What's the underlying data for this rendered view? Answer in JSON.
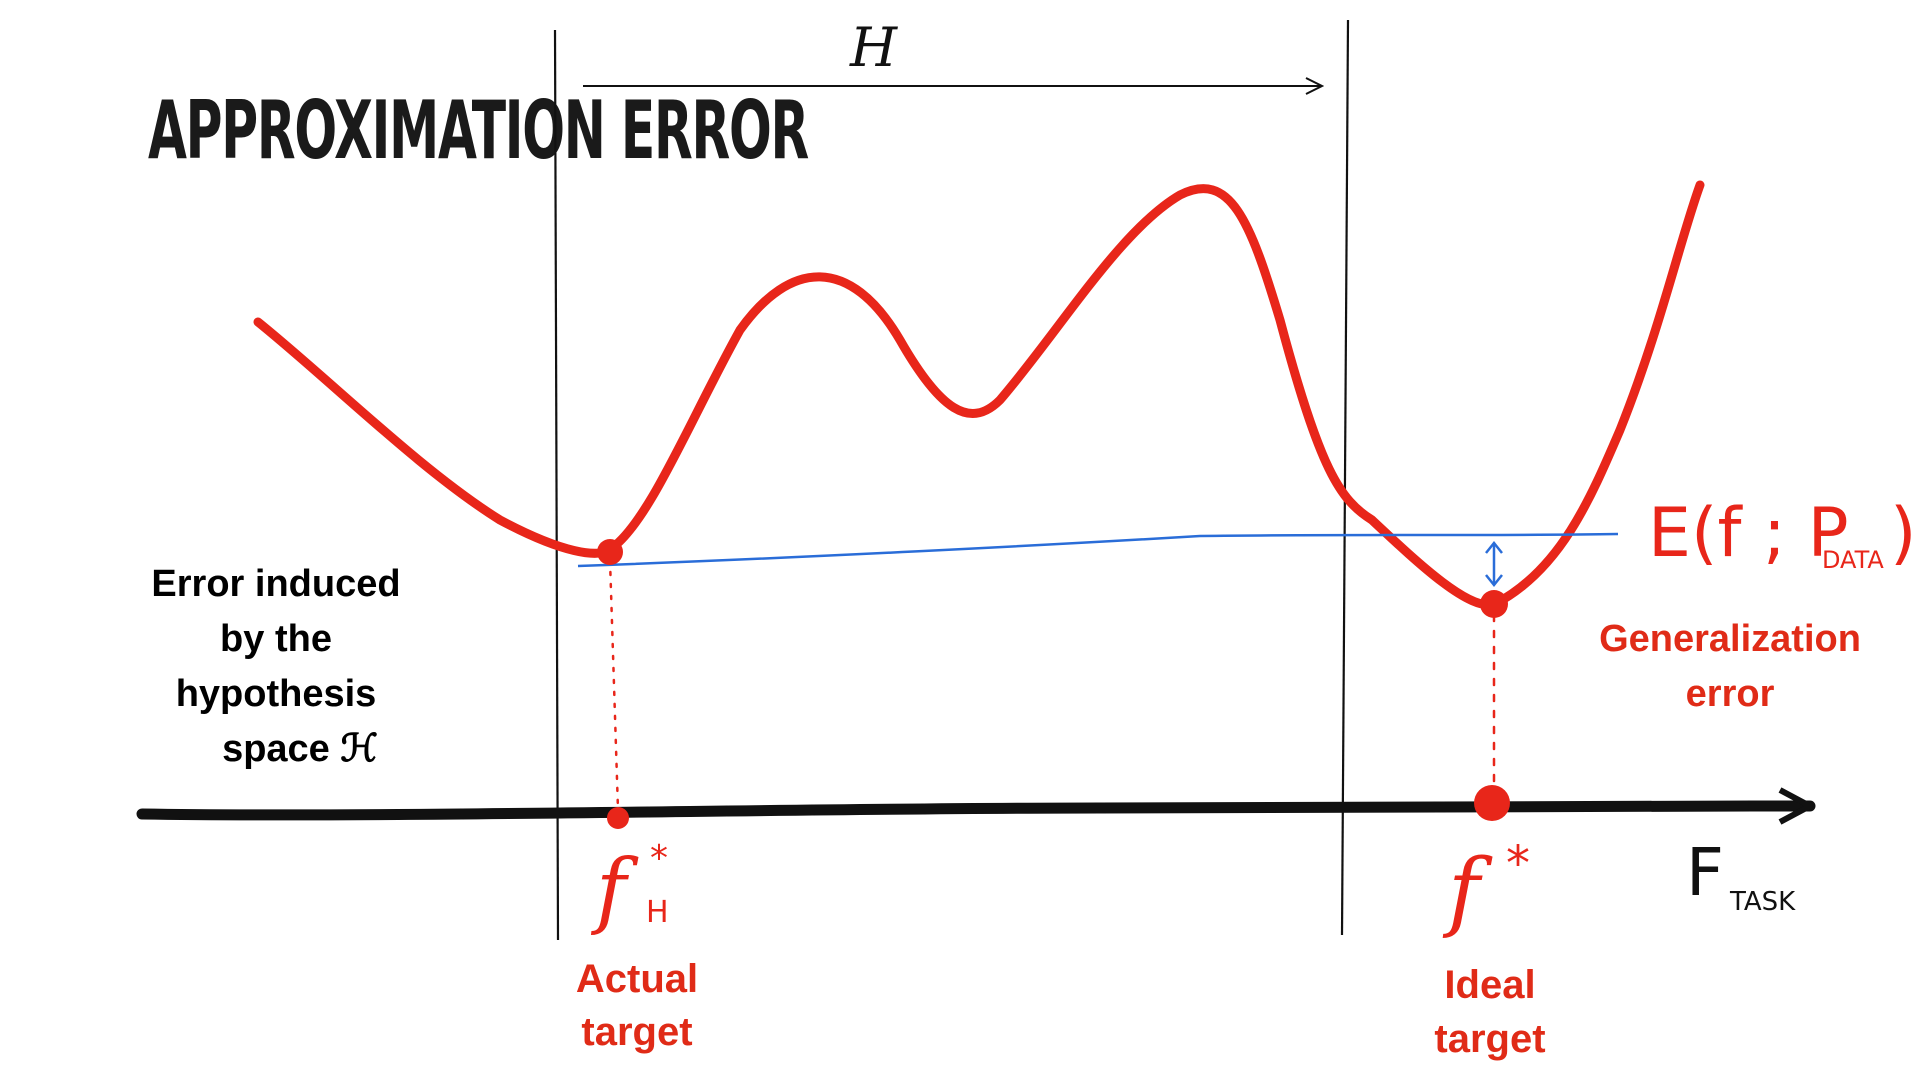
{
  "title": "APPROXIMATION ERROR",
  "hypothesis_space_symbol": "H",
  "curve_label": {
    "main": "E(f ; P",
    "sub": "DATA",
    "close": ")"
  },
  "axis_label": {
    "main": "F",
    "sub": "TASK"
  },
  "points": {
    "fh": {
      "main": "f",
      "sup": "*",
      "sub": "H"
    },
    "f": {
      "main": "f",
      "sup": "*"
    }
  },
  "left_annotation": [
    "Error induced",
    "by the",
    "hypothesis",
    "space ℋ"
  ],
  "right_annotation": [
    "Generalization",
    "error"
  ],
  "actual_target": [
    "Actual",
    "target"
  ],
  "ideal_target": [
    "Ideal",
    "target"
  ],
  "colors": {
    "curve": "#e8261a",
    "blue": "#2a6dd8",
    "ink": "#111111",
    "label_red": "#e02b17"
  }
}
